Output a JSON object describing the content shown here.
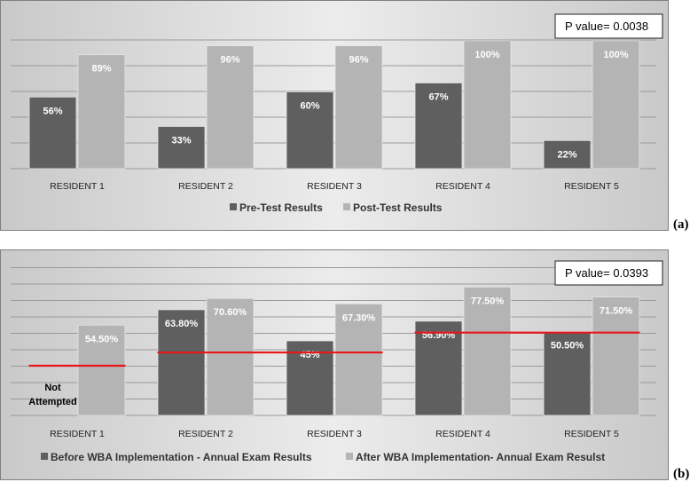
{
  "chart_data": [
    {
      "type": "bar",
      "panel_label": "(a)",
      "annotation": "P value= 0.0038",
      "categories": [
        "RESIDENT 1",
        "RESIDENT 2",
        "RESIDENT 3",
        "RESIDENT 4",
        "RESIDENT 5"
      ],
      "series": [
        {
          "name": "Pre-Test Results",
          "color": "#5f5f5f",
          "values": [
            56,
            33,
            60,
            67,
            22
          ],
          "labels": [
            "56%",
            "33%",
            "60%",
            "67%",
            "22%"
          ]
        },
        {
          "name": "Post-Test Results",
          "color": "#b4b4b4",
          "values": [
            89,
            96,
            96,
            100,
            100
          ],
          "labels": [
            "89%",
            "96%",
            "96%",
            "100%",
            "100%"
          ]
        }
      ],
      "ylim": [
        0,
        120
      ],
      "grid": true,
      "legend": "bottom"
    },
    {
      "type": "bar",
      "panel_label": "(b)",
      "annotation": "P value= 0.0393",
      "categories": [
        "RESIDENT 1",
        "RESIDENT 2",
        "RESIDENT 3",
        "RESIDENT 4",
        "RESIDENT 5"
      ],
      "series": [
        {
          "name": "Before WBA Implementation - Annual Exam Results",
          "color": "#5f5f5f",
          "values": [
            0,
            63.8,
            45,
            56.9,
            50.5
          ],
          "labels": [
            "Not Attempted",
            "63.80%",
            "45%",
            "56.90%",
            "50.50%"
          ]
        },
        {
          "name": "After WBA Implementation- Annual Exam Resulst",
          "color": "#b4b4b4",
          "values": [
            54.5,
            70.6,
            67.3,
            77.5,
            71.5
          ],
          "labels": [
            "54.50%",
            "70.60%",
            "67.30%",
            "77.50%",
            "71.50%"
          ]
        }
      ],
      "reference_lines": [
        {
          "from_category": 0,
          "to_category": 0,
          "value": 30
        },
        {
          "from_category": 1,
          "to_category": 2,
          "value": 38
        },
        {
          "from_category": 3,
          "to_category": 4,
          "value": 50
        }
      ],
      "reference_line_color": "#e8161b",
      "ylim": [
        0,
        90
      ],
      "grid": true,
      "legend": "bottom"
    }
  ]
}
